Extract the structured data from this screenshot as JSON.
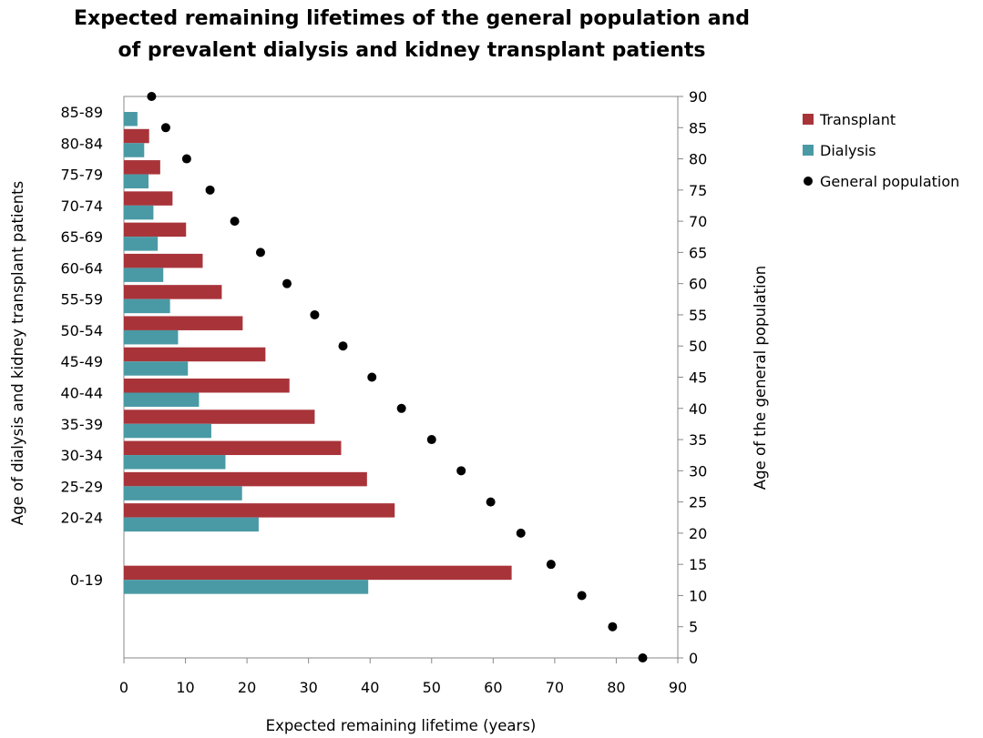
{
  "chart_data": {
    "type": "bar",
    "orientation": "horizontal",
    "title": [
      "Expected remaining lifetimes of the general population and",
      "of prevalent dialysis and kidney transplant patients"
    ],
    "xlabel": "Expected remaining lifetime (years)",
    "ylabel_left": "Age of dialysis  and  kidney transplant patients",
    "ylabel_right": "Age of the general population",
    "xlim": [
      0,
      90
    ],
    "x_ticks": [
      0,
      10,
      20,
      30,
      40,
      50,
      60,
      70,
      80,
      90
    ],
    "ylim_right": [
      0,
      90
    ],
    "right_ticks": [
      0,
      5,
      10,
      15,
      20,
      25,
      30,
      35,
      40,
      45,
      50,
      55,
      60,
      65,
      70,
      75,
      80,
      85,
      90
    ],
    "grid": false,
    "legend_position": "right",
    "categories": [
      "0-19",
      "20-24",
      "25-29",
      "30-34",
      "35-39",
      "40-44",
      "45-49",
      "50-54",
      "55-59",
      "60-64",
      "65-69",
      "70-74",
      "75-79",
      "80-84",
      "85-89"
    ],
    "category_positions": [
      15,
      25,
      30,
      35,
      40,
      45,
      50,
      55,
      60,
      65,
      70,
      75,
      80,
      85,
      90
    ],
    "series": [
      {
        "name": "Transplant",
        "kind": "bar",
        "color": "#A8343A",
        "values": [
          63.0,
          44.0,
          39.5,
          35.3,
          31.0,
          26.9,
          23.0,
          19.3,
          15.9,
          12.8,
          10.1,
          7.9,
          5.9,
          4.1,
          null
        ]
      },
      {
        "name": "Dialysis",
        "kind": "bar",
        "color": "#4A9AA5",
        "values": [
          39.7,
          21.9,
          19.2,
          16.5,
          14.2,
          12.2,
          10.4,
          8.8,
          7.5,
          6.4,
          5.5,
          4.8,
          4.0,
          3.3,
          2.2
        ]
      },
      {
        "name": "General population",
        "kind": "scatter",
        "color": "#000000",
        "points": [
          [
            84.3,
            0
          ],
          [
            79.4,
            5
          ],
          [
            74.4,
            10
          ],
          [
            69.4,
            15
          ],
          [
            64.5,
            20
          ],
          [
            59.6,
            25
          ],
          [
            54.8,
            30
          ],
          [
            50.0,
            35
          ],
          [
            45.1,
            40
          ],
          [
            40.3,
            45
          ],
          [
            35.6,
            50
          ],
          [
            31.0,
            55
          ],
          [
            26.5,
            60
          ],
          [
            22.2,
            65
          ],
          [
            18.0,
            70
          ],
          [
            14.0,
            75
          ],
          [
            10.2,
            80
          ],
          [
            6.8,
            85
          ],
          [
            4.5,
            90
          ]
        ]
      }
    ]
  }
}
